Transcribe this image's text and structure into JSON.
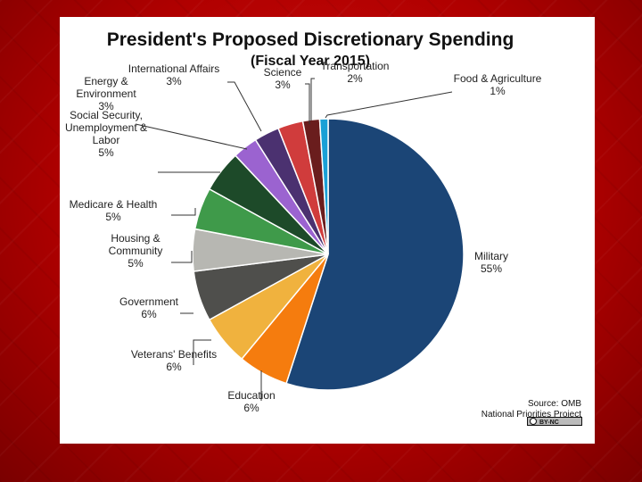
{
  "chart_data": {
    "type": "pie",
    "title": "President's Proposed Discretionary Spending",
    "subtitle": "(Fiscal Year 2015)",
    "slices": [
      {
        "label": [
          "Military"
        ],
        "value": 55,
        "text": "55%",
        "color": "#1b4576"
      },
      {
        "label": [
          "Education"
        ],
        "value": 6,
        "text": "6%",
        "color": "#f57c0e"
      },
      {
        "label": [
          "Veterans' Benefits"
        ],
        "value": 6,
        "text": "6%",
        "color": "#f0b23e"
      },
      {
        "label": [
          "Government"
        ],
        "value": 6,
        "text": "6%",
        "color": "#4f4f4c"
      },
      {
        "label": [
          "Housing &",
          "Community"
        ],
        "value": 5,
        "text": "5%",
        "color": "#b7b7b2"
      },
      {
        "label": [
          "Medicare & Health"
        ],
        "value": 5,
        "text": "5%",
        "color": "#3f9a4a"
      },
      {
        "label": [
          "Social Security,",
          "Unemployment &",
          "Labor"
        ],
        "value": 5,
        "text": "5%",
        "color": "#1d4a29"
      },
      {
        "label": [
          "Energy &",
          "Environment"
        ],
        "value": 3,
        "text": "3%",
        "color": "#9b63d0"
      },
      {
        "label": [
          "International Affairs"
        ],
        "value": 3,
        "text": "3%",
        "color": "#4b3170"
      },
      {
        "label": [
          "Science"
        ],
        "value": 3,
        "text": "3%",
        "color": "#d03c3c"
      },
      {
        "label": [
          "Transportation"
        ],
        "value": 2,
        "text": "2%",
        "color": "#6a1d1d"
      },
      {
        "label": [
          "Food & Agriculture"
        ],
        "value": 1,
        "text": "1%",
        "color": "#1aa0d6"
      }
    ],
    "source_lines": [
      "Source: OMB",
      "National Priorities Project"
    ],
    "license_badge": "BY-NC"
  }
}
